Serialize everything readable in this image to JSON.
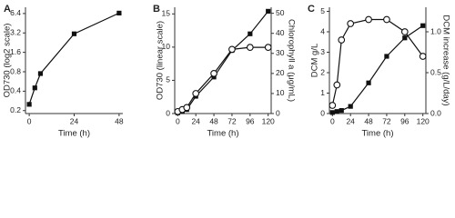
{
  "chart_data": [
    {
      "type": "line",
      "label": "A",
      "xlabel": "Time (h)",
      "ylabel": "OD730 (log2 scale)",
      "ylog": true,
      "xlim": [
        -2,
        50
      ],
      "xticks": [
        0,
        24,
        48
      ],
      "ylim": [
        0.18,
        8
      ],
      "yticks": [
        0.2,
        0.4,
        0.8,
        1.6,
        3.2,
        6.4
      ],
      "x": [
        0,
        3,
        6,
        24,
        48
      ],
      "series": [
        {
          "color": "#111",
          "marker": "square",
          "values": [
            0.25,
            0.45,
            0.75,
            3.1,
            6.5
          ]
        }
      ]
    },
    {
      "type": "line",
      "label": "B",
      "xlabel": "Time (h)",
      "ylabel": "OD730 (linear scale)",
      "y2label": "Chlorophyll a (μg/mL)",
      "xlim": [
        -4,
        124
      ],
      "xticks": [
        0,
        24,
        48,
        72,
        96,
        120
      ],
      "ylim": [
        0,
        16
      ],
      "yticks": [
        0,
        5,
        10,
        15
      ],
      "y2lim": [
        0,
        53
      ],
      "y2ticks": [
        0,
        10,
        20,
        30,
        40,
        50
      ],
      "x": [
        0,
        6,
        12,
        24,
        48,
        72,
        96,
        120
      ],
      "series": [
        {
          "color": "#111",
          "marker": "square",
          "values": [
            0.1,
            0.3,
            0.6,
            2.6,
            5.5,
            9.5,
            12,
            15.4
          ]
        },
        {
          "color": "#111",
          "marker": "circle",
          "axis": "y2",
          "values": [
            1,
            2,
            3,
            10,
            20,
            32,
            33,
            33
          ]
        }
      ]
    },
    {
      "type": "line",
      "label": "C",
      "xlabel": "Time (h)",
      "ylabel": "DCM g/L",
      "y2label": "DCM increase (g/L/day)",
      "xlim": [
        -4,
        124
      ],
      "xticks": [
        0,
        24,
        48,
        72,
        96,
        120
      ],
      "ylim": [
        0,
        5.2
      ],
      "yticks": [
        0,
        1,
        2,
        3,
        4,
        5
      ],
      "y2lim": [
        0,
        1.3
      ],
      "y2ticks": [
        {
          "value": 0,
          "label": "0.0"
        },
        {
          "value": 0.5,
          "label": "0.5"
        },
        {
          "value": 1,
          "label": "1.0"
        }
      ],
      "x": [
        0,
        6,
        12,
        24,
        48,
        72,
        96,
        120
      ],
      "series": [
        {
          "color": "#111",
          "marker": "square",
          "values": [
            0.05,
            0.1,
            0.15,
            0.35,
            1.5,
            2.8,
            3.7,
            4.3
          ]
        },
        {
          "color": "#111",
          "marker": "circle",
          "axis": "y2",
          "values": [
            0.1,
            0.35,
            0.9,
            1.1,
            1.15,
            1.15,
            1.0,
            0.7
          ]
        }
      ]
    }
  ]
}
